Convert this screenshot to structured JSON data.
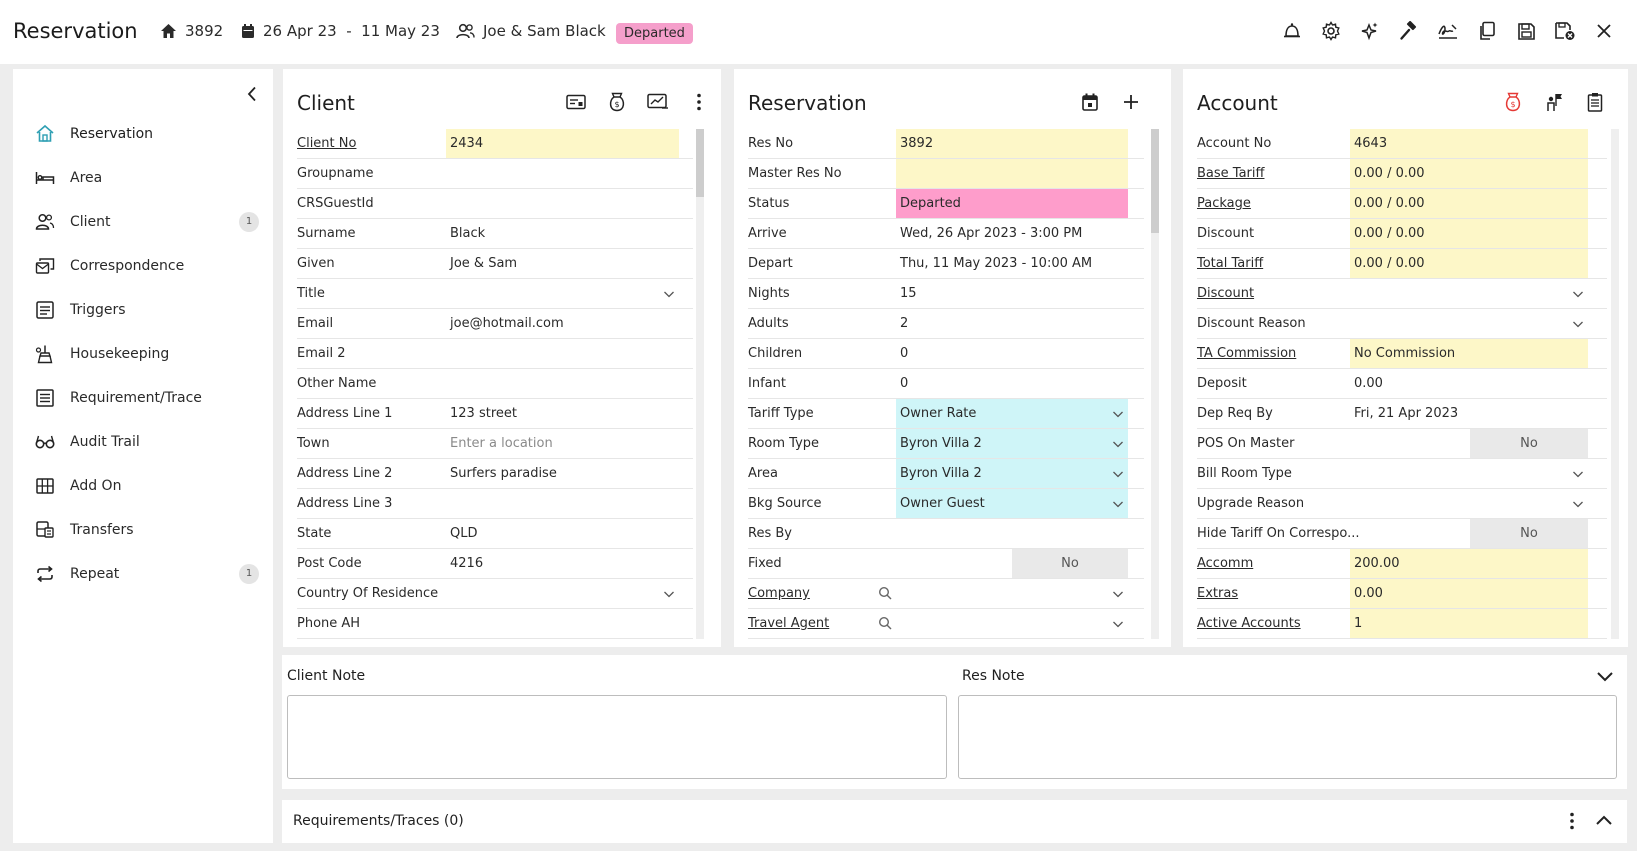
{
  "header": {
    "title": "Reservation",
    "res_no": "3892",
    "dates": "26 Apr 23  -  11 May 23",
    "guest": "Joe & Sam Black",
    "status": "Departed",
    "status_color": "#f59fcb",
    "toolbar_icons": [
      "bell-icon",
      "gear-icon",
      "sparkle-star-icon",
      "hammer-icon",
      "signature-icon",
      "copy-icon",
      "save-icon",
      "save-close-icon",
      "close-icon"
    ]
  },
  "sidebar": {
    "items": [
      {
        "label": "Reservation",
        "icon": "home-icon",
        "count": ""
      },
      {
        "label": "Area",
        "icon": "bed-icon",
        "count": ""
      },
      {
        "label": "Client",
        "icon": "users-icon",
        "count": "1"
      },
      {
        "label": "Correspondence",
        "icon": "mail-stack-icon",
        "count": ""
      },
      {
        "label": "Triggers",
        "icon": "calendar-list-icon",
        "count": ""
      },
      {
        "label": "Housekeeping",
        "icon": "cleaning-icon",
        "count": ""
      },
      {
        "label": "Requirement/Trace",
        "icon": "checklist-icon",
        "count": ""
      },
      {
        "label": "Audit Trail",
        "icon": "glasses-icon",
        "count": ""
      },
      {
        "label": "Add On",
        "icon": "grid-icon",
        "count": ""
      },
      {
        "label": "Transfers",
        "icon": "bus-icon",
        "count": ""
      },
      {
        "label": "Repeat",
        "icon": "repeat-icon",
        "count": "1"
      }
    ]
  },
  "client": {
    "title": "Client",
    "rows": [
      {
        "label": "Client No",
        "value": "2434",
        "link": true,
        "style": "yellow"
      },
      {
        "label": "Groupname",
        "value": ""
      },
      {
        "label": "CRSGuestId",
        "value": ""
      },
      {
        "label": "Surname",
        "value": "Black"
      },
      {
        "label": "Given",
        "value": "Joe & Sam"
      },
      {
        "label": "Title",
        "value": "",
        "dropdown": true
      },
      {
        "label": "Email",
        "value": "joe@hotmail.com"
      },
      {
        "label": "Email 2",
        "value": ""
      },
      {
        "label": "Other Name",
        "value": ""
      },
      {
        "label": "Address Line 1",
        "value": "123 street"
      },
      {
        "label": "Town",
        "value": "",
        "placeholder": "Enter a location"
      },
      {
        "label": "Address Line 2",
        "value": "Surfers paradise"
      },
      {
        "label": "Address Line 3",
        "value": ""
      },
      {
        "label": "State",
        "value": "QLD"
      },
      {
        "label": "Post Code",
        "value": "4216"
      },
      {
        "label": "Country Of Residence",
        "value": "",
        "dropdown": true
      },
      {
        "label": "Phone AH",
        "value": ""
      }
    ]
  },
  "reservation": {
    "title": "Reservation",
    "rows": [
      {
        "label": "Res No",
        "value": "3892",
        "style": "yellow"
      },
      {
        "label": "Master Res No",
        "value": "",
        "style": "yellow"
      },
      {
        "label": "Status",
        "value": "Departed",
        "style": "pink"
      },
      {
        "label": "Arrive",
        "value": "Wed, 26 Apr 2023 - 3:00 PM"
      },
      {
        "label": "Depart",
        "value": "Thu, 11 May 2023 - 10:00 AM"
      },
      {
        "label": "Nights",
        "value": "15"
      },
      {
        "label": "Adults",
        "value": "2"
      },
      {
        "label": "Children",
        "value": "0"
      },
      {
        "label": "Infant",
        "value": "0"
      },
      {
        "label": "Tariff Type",
        "value": "Owner Rate",
        "style": "cyan",
        "dropdown": true
      },
      {
        "label": "Room Type",
        "value": "Byron Villa 2",
        "style": "cyan",
        "dropdown": true
      },
      {
        "label": "Area",
        "value": "Byron Villa 2",
        "style": "cyan",
        "dropdown": true
      },
      {
        "label": "Bkg Source",
        "value": "Owner Guest",
        "style": "cyan",
        "dropdown": true
      },
      {
        "label": "Res By",
        "value": ""
      },
      {
        "label": "Fixed",
        "value": "No",
        "style": "grey-toggle"
      },
      {
        "label": "Company",
        "value": "",
        "link": true,
        "search": true,
        "dropdown": true
      },
      {
        "label": "Travel Agent",
        "value": "",
        "link": true,
        "search": true,
        "dropdown": true
      }
    ]
  },
  "account": {
    "title": "Account",
    "rows": [
      {
        "label": "Account No",
        "value": "4643",
        "style": "yellow"
      },
      {
        "label": "Base Tariff",
        "value": "0.00 / 0.00",
        "link": true,
        "style": "yellow"
      },
      {
        "label": "Package",
        "value": "0.00 / 0.00",
        "link": true,
        "style": "yellow"
      },
      {
        "label": "Discount",
        "value": "0.00 / 0.00",
        "style": "yellow"
      },
      {
        "label": "Total Tariff",
        "value": "0.00 / 0.00",
        "link": true,
        "style": "yellow"
      },
      {
        "label": "Discount",
        "value": "",
        "link": true,
        "dropdown": true
      },
      {
        "label": "Discount Reason",
        "value": "",
        "dropdown": true
      },
      {
        "label": "TA Commission",
        "value": "No Commission",
        "link": true,
        "style": "yellow"
      },
      {
        "label": "Deposit",
        "value": "0.00"
      },
      {
        "label": "Dep Req By",
        "value": "Fri, 21 Apr 2023"
      },
      {
        "label": "POS On Master",
        "value": "No",
        "style": "grey-toggle"
      },
      {
        "label": "Bill Room Type",
        "value": "",
        "dropdown": true
      },
      {
        "label": "Upgrade Reason",
        "value": "",
        "dropdown": true
      },
      {
        "label": "Hide Tariff On Correspo...",
        "value": "No",
        "style": "grey-toggle"
      },
      {
        "label": "Accomm",
        "value": "200.00",
        "link": true,
        "style": "yellow"
      },
      {
        "label": "Extras",
        "value": "0.00",
        "link": true,
        "style": "yellow"
      },
      {
        "label": "Active Accounts",
        "value": "1",
        "link": true,
        "style": "yellow"
      }
    ]
  },
  "notes": {
    "client_note_label": "Client Note",
    "res_note_label": "Res Note",
    "client_note": "",
    "res_note": ""
  },
  "requirements": {
    "title": "Requirements/Traces (0)"
  },
  "colors": {
    "yellow": "#fdf7c8",
    "pink": "#fe9dcb",
    "cyan": "#cff5f8",
    "alert_red": "#e53935"
  }
}
